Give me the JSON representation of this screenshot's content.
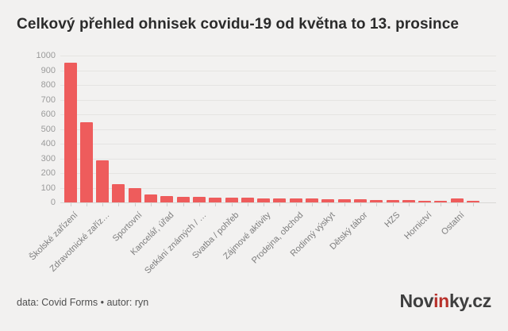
{
  "title": "Celkový přehled ohnisek covidu-19 od května to 13. prosince",
  "footer": {
    "credit": "data: Covid Forms • autor: ryn"
  },
  "logo": {
    "part1": "Nov",
    "part2": "in",
    "part3": "ky.cz"
  },
  "colors": {
    "background": "#f2f1f0",
    "bar": "#ee5c5c",
    "gridline": "#e5e4e2",
    "axis_text": "#9b9b9b",
    "category_text": "#7d7d7d",
    "title_text": "#2b2b2b",
    "logo_accent": "#b8312b"
  },
  "chart_data": {
    "type": "bar",
    "title": "Celkový přehled ohnisek covidu-19 od května to 13. prosince",
    "xlabel": "",
    "ylabel": "",
    "ylim": [
      0,
      1000
    ],
    "yticks": [
      0,
      100,
      200,
      300,
      400,
      500,
      600,
      700,
      800,
      900,
      1000
    ],
    "grid": true,
    "legend": "none",
    "label_skip": "every other category label hidden",
    "categories": [
      "Školské zařízení",
      "",
      "Zdravotnické zaříz…",
      "",
      "Sportovní",
      "",
      "Kancelář, úřad",
      "",
      "Setkání známých / …",
      "",
      "Svatba / pohřeb",
      "",
      "Zájmové aktivity",
      "",
      "Prodejna, obchod",
      "",
      "Rodinný výskyt",
      "",
      "Dětský tábor",
      "",
      "HZS",
      "",
      "Hornictví",
      "",
      "Ostatní",
      ""
    ],
    "values": [
      950,
      545,
      285,
      125,
      97,
      52,
      42,
      38,
      36,
      34,
      32,
      30,
      29,
      28,
      27,
      25,
      24,
      22,
      20,
      17,
      16,
      14,
      13,
      12,
      28,
      10
    ]
  }
}
